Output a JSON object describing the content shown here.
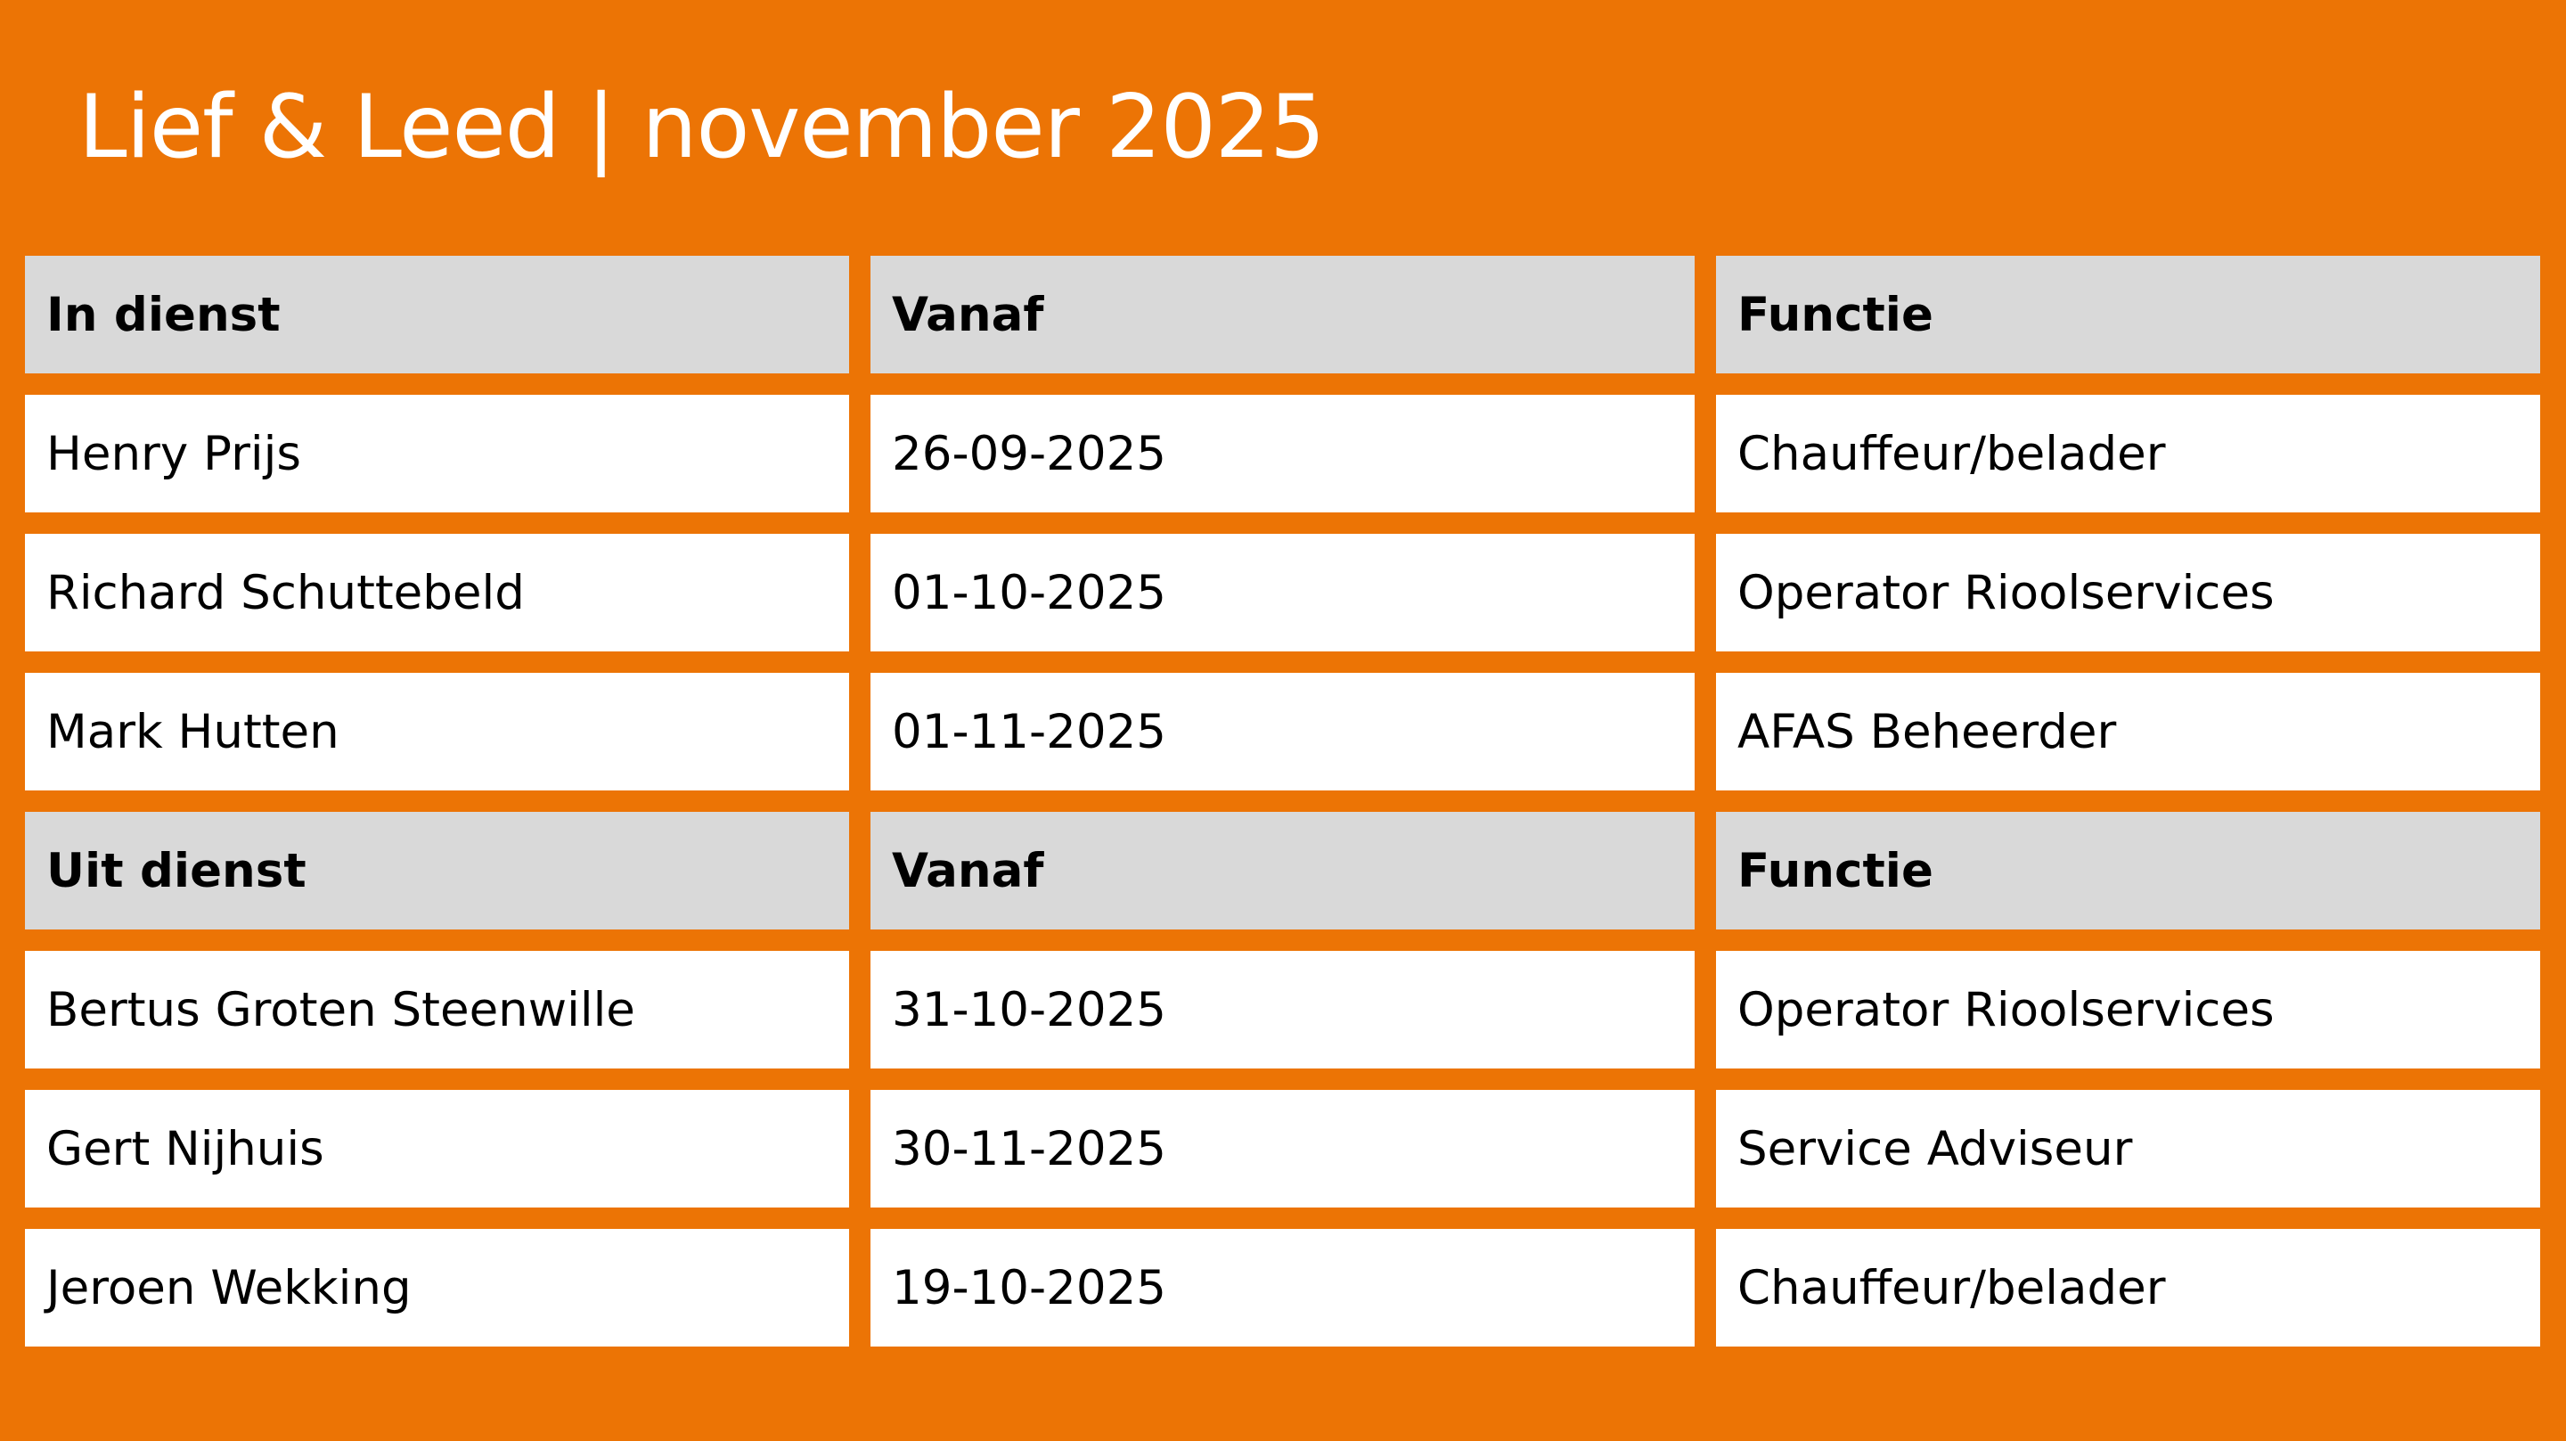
{
  "title": "Lief & Leed | november 2025",
  "colors": {
    "background": "#EC7405",
    "header_cell": "#D9D9D9",
    "cell": "#FFFFFF"
  },
  "sections": [
    {
      "headers": [
        "In dienst",
        "Vanaf",
        "Functie"
      ],
      "rows": [
        [
          "Henry Prijs",
          "26-09-2025",
          "Chauffeur/belader"
        ],
        [
          "Richard Schuttebeld",
          "01-10-2025",
          "Operator Rioolservices"
        ],
        [
          "Mark Hutten",
          "01-11-2025",
          "AFAS Beheerder"
        ]
      ]
    },
    {
      "headers": [
        "Uit dienst",
        "Vanaf",
        "Functie"
      ],
      "rows": [
        [
          "Bertus Groten Steenwille",
          "31-10-2025",
          "Operator Rioolservices"
        ],
        [
          "Gert Nijhuis",
          "30-11-2025",
          "Service Adviseur"
        ],
        [
          "Jeroen Wekking",
          "19-10-2025",
          "Chauffeur/belader"
        ]
      ]
    }
  ]
}
